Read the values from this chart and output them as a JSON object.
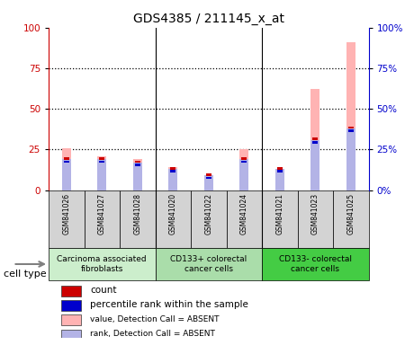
{
  "title": "GDS4385 / 211145_x_at",
  "samples": [
    "GSM841026",
    "GSM841027",
    "GSM841028",
    "GSM841020",
    "GSM841022",
    "GSM841024",
    "GSM841021",
    "GSM841023",
    "GSM841025"
  ],
  "value_absent": [
    26,
    21,
    19,
    14,
    9,
    25,
    13,
    62,
    91
  ],
  "rank_absent": [
    19,
    19,
    17,
    13,
    9,
    19,
    13,
    31,
    38
  ],
  "count_val": [
    1,
    1,
    1,
    1,
    1,
    1,
    1,
    1,
    1
  ],
  "rank_present_val": [
    1,
    1,
    1,
    1,
    1,
    1,
    1,
    1,
    1
  ],
  "ylim_left": [
    0,
    100
  ],
  "ylim_right": [
    0,
    100
  ],
  "yticks": [
    0,
    25,
    50,
    75,
    100
  ],
  "color_value_absent": "#ffb3b3",
  "color_rank_absent": "#b3b3e6",
  "color_count": "#cc0000",
  "color_rank_present": "#0000cc",
  "groups": [
    {
      "label": "Carcinoma associated\nfibroblasts",
      "start": 0,
      "end": 3,
      "color": "#cceecc"
    },
    {
      "label": "CD133+ colorectal\ncancer cells",
      "start": 3,
      "end": 6,
      "color": "#aaddaa"
    },
    {
      "label": "CD133- colorectal\ncancer cells",
      "start": 6,
      "end": 9,
      "color": "#44cc44"
    }
  ],
  "legend_items": [
    {
      "color": "#cc0000",
      "label": "count",
      "size": 6
    },
    {
      "color": "#0000cc",
      "label": "percentile rank within the sample",
      "size": 6
    },
    {
      "color": "#ffb3b3",
      "label": "value, Detection Call = ABSENT",
      "size": 5
    },
    {
      "color": "#b3b3e6",
      "label": "rank, Detection Call = ABSENT",
      "size": 5
    }
  ]
}
